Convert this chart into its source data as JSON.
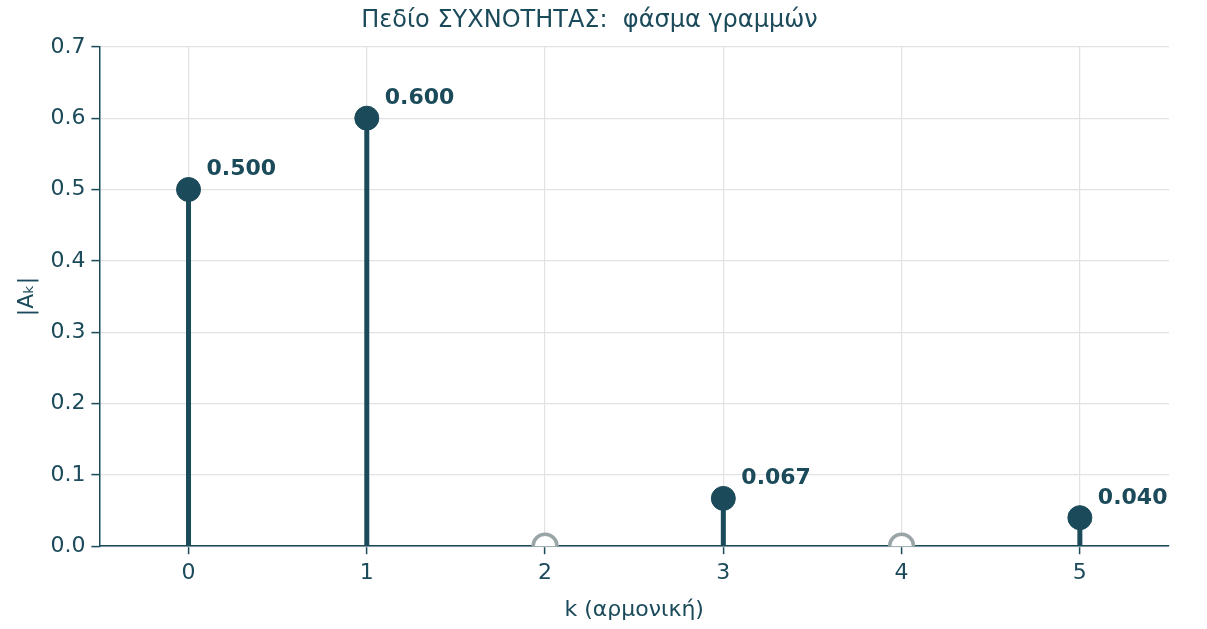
{
  "chart_data": {
    "type": "lollipop",
    "title": "Πεδίο ΣΥΧΝΟΤΗΤΑΣ:  φάσμα γραμμών",
    "xlabel": "k (αρμονική)",
    "ylabel": "|Aₖ|",
    "x": [
      0,
      1,
      2,
      3,
      4,
      5
    ],
    "values": [
      0.5,
      0.6,
      0,
      0.067,
      0,
      0.04
    ],
    "colors": [
      "#1b4a5a",
      "#1b4a5a",
      "#9aa5a8",
      "#1b4a5a",
      "#9aa5a8",
      "#1b4a5a"
    ],
    "value_labels": [
      "0.500",
      "0.600",
      null,
      "0.067",
      null,
      "0.040"
    ],
    "xlim": [
      -0.5,
      5.5
    ],
    "xticks": [
      0,
      1,
      2,
      3,
      4,
      5
    ],
    "ylim": [
      0,
      0.7
    ],
    "yticks": [
      {
        "value": 0,
        "label": "0.0"
      },
      {
        "value": 0.1,
        "label": "0.1"
      },
      {
        "value": 0.2,
        "label": "0.2"
      },
      {
        "value": 0.3,
        "label": "0.3"
      },
      {
        "value": 0.4,
        "label": "0.4"
      },
      {
        "value": 0.5,
        "label": "0.5"
      },
      {
        "value": 0.6,
        "label": "0.6"
      },
      {
        "value": 0.7,
        "label": "0.7"
      }
    ],
    "grid": true,
    "marker": "circle"
  }
}
